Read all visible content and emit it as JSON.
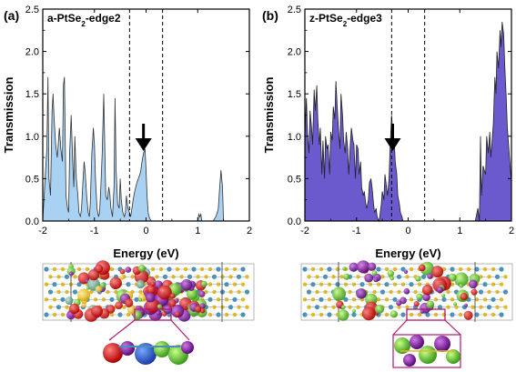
{
  "chart_data": [
    {
      "panel": "(a)",
      "type": "area",
      "title": "a-PtSe2-edge2",
      "title_main": "a-PtSe",
      "title_sub": "2",
      "title_tail": "-edge2",
      "xlabel": "Energy (eV)",
      "ylabel": "Transmission",
      "xlim": [
        -2,
        2
      ],
      "ylim": [
        0,
        2.5
      ],
      "xticks": [
        "-2",
        "-1",
        "0",
        "1",
        "2"
      ],
      "yticks": [
        "0.0",
        "0.5",
        "1.0",
        "1.5",
        "2.0",
        "2.5"
      ],
      "fill_color": "#a9d1f2",
      "line_color": "#333333",
      "dashed_lines_x": [
        -0.32,
        0.32
      ],
      "arrow_x": -0.05,
      "series": [
        {
          "x": [
            -2.0,
            -1.95,
            -1.92,
            -1.9,
            -1.88,
            -1.85,
            -1.82,
            -1.8,
            -1.78,
            -1.75,
            -1.72,
            -1.7,
            -1.68,
            -1.65,
            -1.62,
            -1.6,
            -1.58,
            -1.55,
            -1.52,
            -1.5,
            -1.48,
            -1.45,
            -1.42,
            -1.4,
            -1.38,
            -1.35,
            -1.32,
            -1.3,
            -1.27,
            -1.25,
            -1.22,
            -1.2,
            -1.18,
            -1.15,
            -1.12,
            -1.1,
            -1.08,
            -1.05,
            -1.02,
            -1.0,
            -0.98,
            -0.95,
            -0.92,
            -0.9,
            -0.88,
            -0.85,
            -0.82,
            -0.8,
            -0.78,
            -0.75,
            -0.72,
            -0.7,
            -0.68,
            -0.65,
            -0.62,
            -0.6,
            -0.58,
            -0.55,
            -0.52,
            -0.5,
            -0.48,
            -0.45,
            -0.42,
            -0.4,
            -0.38,
            -0.35,
            -0.32,
            -0.3,
            -0.28,
            -0.25,
            -0.22,
            -0.2,
            -0.18,
            -0.15,
            -0.12,
            -0.1,
            -0.08,
            -0.05,
            -0.02,
            0.0,
            0.02,
            0.04,
            0.06,
            0.08,
            0.1,
            0.12,
            0.14,
            0.16,
            0.2,
            1.0,
            1.02,
            1.04,
            1.06,
            1.08,
            1.3,
            1.35,
            1.38,
            1.4,
            1.42,
            1.45,
            1.48,
            1.5
          ],
          "y": [
            0.0,
            0.55,
            0.85,
            1.7,
            0.5,
            0.3,
            1.3,
            1.5,
            1.2,
            0.9,
            0.75,
            0.9,
            1.1,
            0.85,
            0.7,
            1.6,
            1.7,
            0.3,
            0.15,
            0.1,
            0.8,
            1.25,
            0.7,
            0.4,
            1.0,
            0.5,
            0.3,
            0.1,
            0.05,
            0.15,
            0.5,
            0.7,
            0.6,
            0.3,
            0.1,
            0.05,
            0.2,
            0.8,
            1.1,
            0.9,
            0.5,
            0.15,
            0.05,
            0.1,
            0.35,
            0.8,
            1.5,
            0.9,
            0.3,
            0.25,
            0.4,
            0.3,
            0.15,
            0.05,
            0.4,
            1.45,
            0.6,
            0.2,
            0.15,
            0.5,
            0.25,
            0.1,
            0.05,
            0.1,
            0.3,
            0.15,
            0.1,
            0.05,
            0.12,
            0.25,
            0.35,
            0.4,
            0.45,
            0.5,
            0.55,
            0.6,
            0.7,
            0.8,
            0.85,
            0.6,
            0.3,
            0.1,
            0.05,
            0.02,
            0.0,
            0.0,
            0.0,
            0.0,
            0.0,
            0.0,
            0.08,
            0.05,
            0.08,
            0.0,
            0.0,
            0.05,
            0.1,
            0.15,
            0.35,
            0.6,
            0.4,
            0.0
          ]
        }
      ]
    },
    {
      "panel": "(b)",
      "type": "area",
      "title": "z-PtSe2-edge3",
      "title_main": "z-PtSe",
      "title_sub": "2",
      "title_tail": "-edge3",
      "xlabel": "Energy (eV)",
      "ylabel": "Transmission",
      "xlim": [
        -2,
        2
      ],
      "ylim": [
        0,
        2.5
      ],
      "xticks": [
        "-2",
        "-1",
        "0",
        "1",
        "2"
      ],
      "yticks": [
        "0.0",
        "0.5",
        "1.0",
        "1.5",
        "2.0",
        "2.5"
      ],
      "fill_color": "#6a5acd",
      "line_color": "#222222",
      "dashed_lines_x": [
        -0.32,
        0.32
      ],
      "arrow_x": -0.3,
      "series": [
        {
          "x": [
            -2.0,
            -1.97,
            -1.95,
            -1.92,
            -1.9,
            -1.87,
            -1.85,
            -1.82,
            -1.8,
            -1.77,
            -1.75,
            -1.72,
            -1.7,
            -1.67,
            -1.65,
            -1.62,
            -1.6,
            -1.57,
            -1.55,
            -1.52,
            -1.5,
            -1.47,
            -1.45,
            -1.42,
            -1.4,
            -1.37,
            -1.35,
            -1.32,
            -1.3,
            -1.27,
            -1.25,
            -1.22,
            -1.2,
            -1.17,
            -1.15,
            -1.12,
            -1.1,
            -1.07,
            -1.05,
            -1.02,
            -1.0,
            -0.97,
            -0.95,
            -0.92,
            -0.9,
            -0.87,
            -0.85,
            -0.82,
            -0.8,
            -0.77,
            -0.75,
            -0.72,
            -0.7,
            -0.67,
            -0.65,
            -0.62,
            -0.6,
            -0.57,
            -0.55,
            -0.52,
            -0.5,
            -0.47,
            -0.45,
            -0.42,
            -0.4,
            -0.37,
            -0.35,
            -0.32,
            -0.3,
            -0.27,
            -0.25,
            -0.22,
            -0.2,
            -0.17,
            -0.15,
            -0.12,
            -0.1,
            1.3,
            1.35,
            1.38,
            1.4,
            1.42,
            1.45,
            1.5,
            1.52,
            1.55,
            1.58,
            1.6,
            1.62,
            1.65,
            1.68,
            1.7,
            1.72,
            1.75,
            1.78,
            1.8,
            1.82,
            1.85,
            1.87,
            1.9,
            1.92,
            1.95,
            2.0
          ],
          "y": [
            1.0,
            1.45,
            1.05,
            0.8,
            1.3,
            1.1,
            0.9,
            1.55,
            1.3,
            1.6,
            1.2,
            0.9,
            1.1,
            0.55,
            0.95,
            0.5,
            1.0,
            0.85,
            0.9,
            0.55,
            1.05,
            0.95,
            1.35,
            1.2,
            1.65,
            1.3,
            1.1,
            0.85,
            1.5,
            1.25,
            0.95,
            0.8,
            1.05,
            0.85,
            0.55,
            0.9,
            1.1,
            0.95,
            0.9,
            0.5,
            0.9,
            0.85,
            0.55,
            0.7,
            0.4,
            0.3,
            0.35,
            0.2,
            0.15,
            0.25,
            0.45,
            0.5,
            0.4,
            0.2,
            0.1,
            0.15,
            0.05,
            0.0,
            0.05,
            0.2,
            0.35,
            0.25,
            0.55,
            0.4,
            0.3,
            0.5,
            0.85,
            1.25,
            1.05,
            0.95,
            0.7,
            0.55,
            0.3,
            0.2,
            0.1,
            0.05,
            0.0,
            0.0,
            0.15,
            0.0,
            1.0,
            0.3,
            0.65,
            0.55,
            1.0,
            0.8,
            1.05,
            0.75,
            0.9,
            1.15,
            1.7,
            1.5,
            2.0,
            1.8,
            2.25,
            2.05,
            2.35,
            2.2,
            1.85,
            1.45,
            1.1,
            0.85,
            0.45
          ]
        }
      ]
    }
  ],
  "structures": [
    {
      "panel": "(a)",
      "name": "a-PtSe2-edge2 device structure"
    },
    {
      "panel": "(b)",
      "name": "z-PtSe2-edge3 device structure"
    }
  ]
}
